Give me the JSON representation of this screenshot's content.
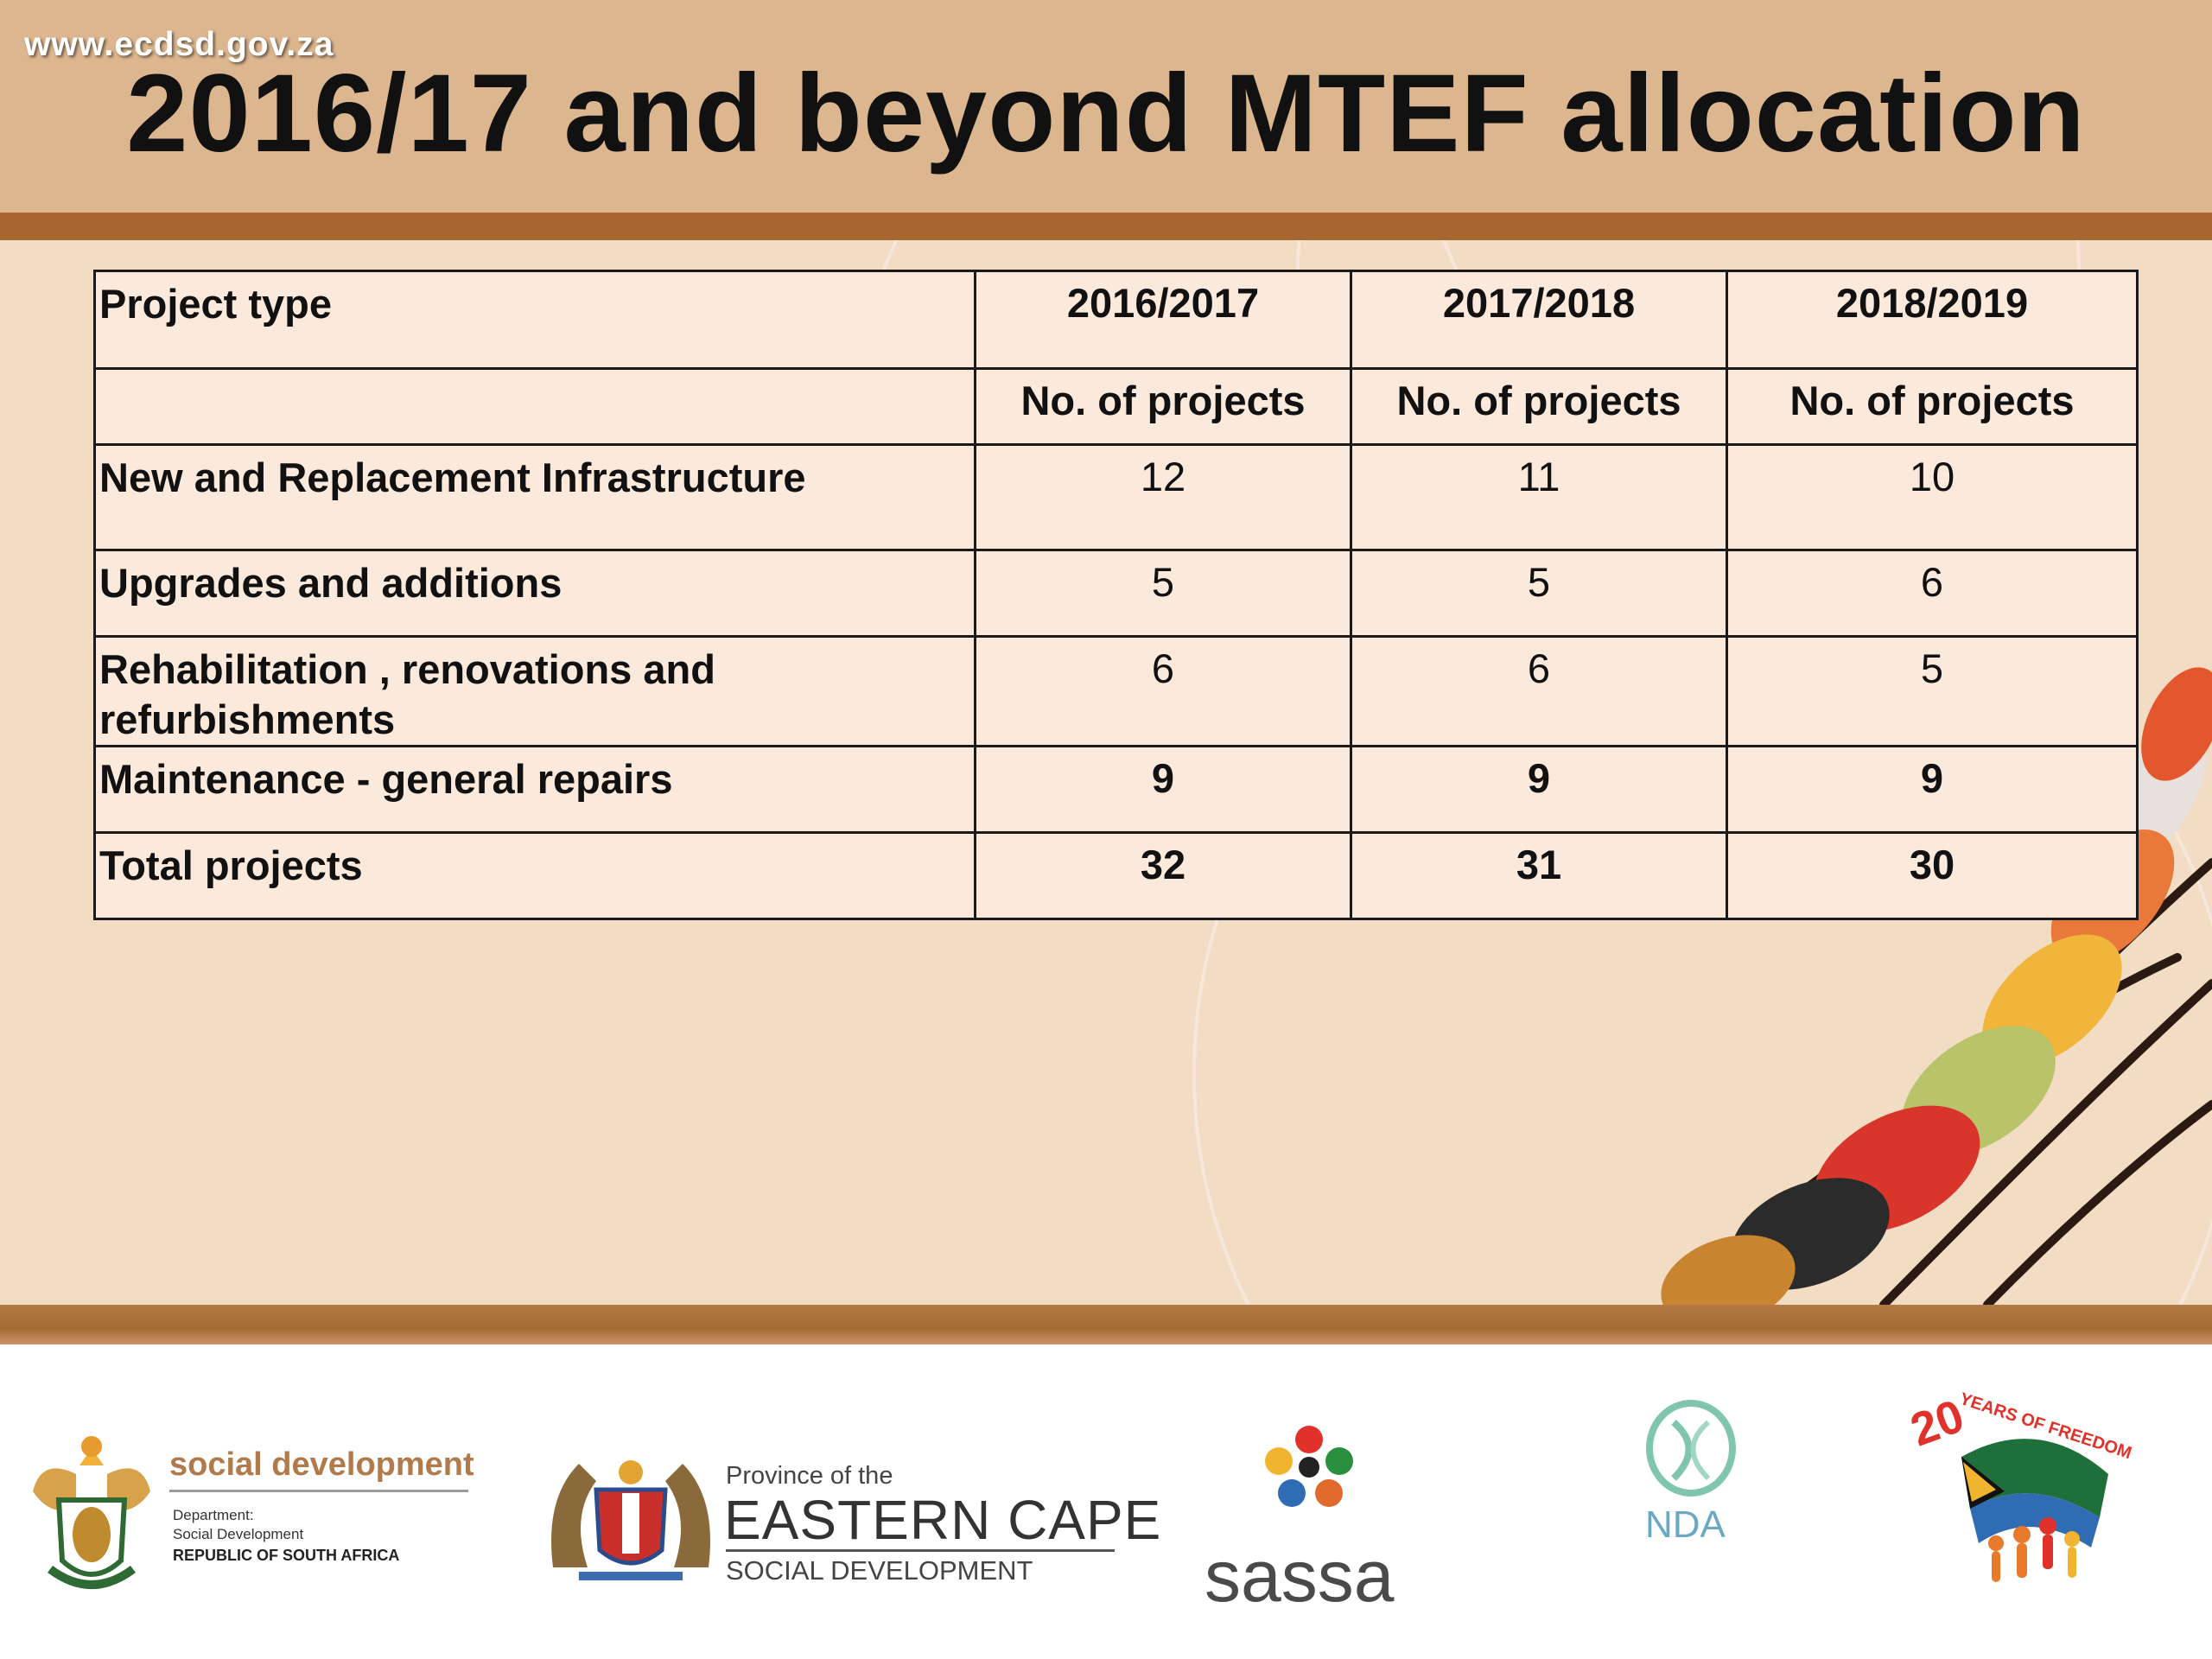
{
  "header": {
    "site_url": "www.ecdsd.gov.za",
    "title": "2016/17 and beyond MTEF allocation"
  },
  "table": {
    "header_row": [
      "Project type",
      "2016/2017",
      "2017/2018",
      "2018/2019"
    ],
    "subheader_row": [
      "",
      "No. of projects",
      "No. of projects",
      "No. of projects"
    ],
    "rows": [
      {
        "label": "New and Replacement Infrastructure",
        "values": [
          "12",
          "11",
          "10"
        ]
      },
      {
        "label": "Upgrades and additions",
        "values": [
          "5",
          "5",
          "6"
        ]
      },
      {
        "label": "Rehabilitation , renovations and refurbishments",
        "values": [
          "6",
          "6",
          "5"
        ]
      },
      {
        "label": "Maintenance - general repairs",
        "values": [
          "9",
          "9",
          "9"
        ]
      },
      {
        "label": "Total projects",
        "values": [
          "32",
          "31",
          "30"
        ]
      }
    ]
  },
  "footer": {
    "social_development": {
      "name": "social development",
      "line1": "Department:",
      "line2": "Social Development",
      "line3": "REPUBLIC OF SOUTH AFRICA"
    },
    "eastern_cape": {
      "line1": "Province of the",
      "line2": "EASTERN CAPE",
      "line3": "SOCIAL DEVELOPMENT"
    },
    "sassa": {
      "name": "sassa"
    },
    "nda": {
      "name": "NDA"
    },
    "freedom": {
      "number": "20",
      "text": "YEARS OF FREEDOM"
    }
  },
  "colors": {
    "header": "#dcb68f",
    "header_bar": "#a5672f",
    "body": "#f2dcc3",
    "table_fill": "#fbe9dc",
    "brown_text": "#b07a4a"
  }
}
